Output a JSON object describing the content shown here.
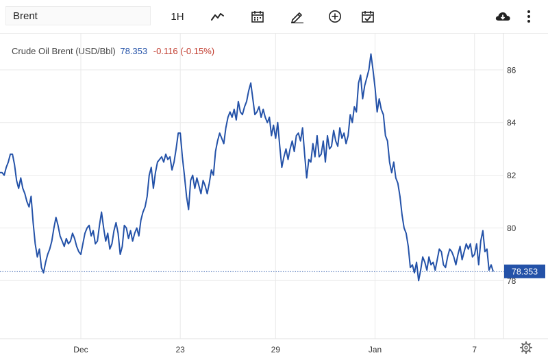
{
  "toolbar": {
    "search_value": "Brent",
    "interval_label": "1H",
    "icons": [
      "line-chart-icon",
      "calendar-icon",
      "pencil-icon",
      "plus-circle-icon",
      "calendar-check-icon",
      "cloud-download-icon",
      "more-vertical-icon"
    ]
  },
  "legend": {
    "symbol": "Crude Oil Brent (USD/Bbl)",
    "price": "78.353",
    "change": "-0.116 (-0.15%)"
  },
  "colors": {
    "line": "#2452a8",
    "negative": "#c0392b",
    "grid": "#e9e9e9"
  },
  "chart_data": {
    "type": "line",
    "title": "Crude Oil Brent (USD/Bbl)",
    "xlabel": "",
    "ylabel": "",
    "ylim": [
      75.8,
      87.4
    ],
    "yticks": [
      78,
      80,
      82,
      84,
      86
    ],
    "x_ticks": [
      {
        "label": "Dec",
        "index": 39
      },
      {
        "label": "23",
        "index": 87
      },
      {
        "label": "29",
        "index": 133
      },
      {
        "label": "Jan",
        "index": 181
      },
      {
        "label": "7",
        "index": 229
      }
    ],
    "current_price": 78.353,
    "current_price_label": "78.353",
    "series": [
      {
        "name": "Crude Oil Brent",
        "values": [
          82.1,
          82.1,
          82.0,
          82.3,
          82.5,
          82.8,
          82.8,
          82.4,
          81.8,
          81.5,
          81.9,
          81.5,
          81.3,
          81.0,
          80.8,
          81.2,
          80.2,
          79.4,
          78.9,
          79.2,
          78.5,
          78.3,
          78.7,
          79.0,
          79.2,
          79.5,
          80.0,
          80.4,
          80.1,
          79.7,
          79.5,
          79.3,
          79.6,
          79.4,
          79.5,
          79.8,
          79.6,
          79.3,
          79.1,
          79.0,
          79.4,
          79.8,
          80.0,
          80.1,
          79.7,
          79.9,
          79.4,
          79.5,
          80.1,
          80.6,
          80.0,
          79.5,
          79.8,
          79.2,
          79.4,
          79.9,
          80.2,
          79.8,
          79.0,
          79.3,
          80.1,
          80.0,
          79.6,
          79.9,
          79.5,
          79.8,
          80.0,
          79.7,
          80.3,
          80.6,
          80.8,
          81.2,
          82.0,
          82.3,
          81.5,
          82.1,
          82.5,
          82.6,
          82.7,
          82.5,
          82.8,
          82.6,
          82.7,
          82.2,
          82.5,
          83.0,
          83.6,
          83.6,
          82.7,
          82.0,
          81.2,
          80.7,
          81.8,
          82.0,
          81.5,
          81.9,
          81.6,
          81.3,
          81.8,
          81.6,
          81.3,
          81.7,
          82.2,
          82.0,
          82.9,
          83.3,
          83.6,
          83.4,
          83.2,
          83.8,
          84.2,
          84.4,
          84.2,
          84.5,
          84.1,
          84.8,
          84.4,
          84.3,
          84.6,
          84.8,
          85.2,
          85.5,
          84.9,
          84.3,
          84.4,
          84.6,
          84.2,
          84.5,
          84.2,
          84.0,
          84.2,
          83.5,
          83.9,
          83.4,
          84.0,
          83.1,
          82.3,
          82.7,
          83.0,
          82.6,
          83.0,
          83.3,
          82.9,
          83.5,
          83.6,
          83.3,
          83.8,
          82.8,
          81.9,
          82.6,
          82.5,
          83.2,
          82.7,
          83.5,
          82.7,
          82.8,
          83.3,
          82.5,
          83.5,
          83.0,
          83.1,
          83.7,
          83.3,
          83.1,
          83.8,
          83.4,
          83.6,
          83.2,
          83.5,
          84.3,
          84.0,
          84.6,
          84.4,
          85.5,
          85.8,
          84.9,
          85.4,
          85.7,
          86.0,
          86.6,
          86.0,
          85.3,
          84.4,
          84.9,
          84.5,
          84.3,
          83.5,
          83.3,
          82.5,
          82.1,
          82.5,
          81.9,
          81.7,
          81.2,
          80.5,
          80.0,
          79.8,
          79.3,
          78.5,
          78.6,
          78.3,
          78.7,
          78.0,
          78.4,
          78.9,
          78.7,
          78.4,
          78.9,
          78.6,
          78.7,
          78.4,
          78.8,
          79.2,
          79.1,
          78.6,
          78.5,
          78.9,
          79.2,
          79.1,
          78.9,
          78.6,
          79.0,
          79.3,
          78.8,
          79.1,
          79.4,
          79.2,
          79.4,
          78.9,
          79.0,
          79.4,
          78.6,
          79.5,
          79.9,
          79.1,
          79.2,
          78.4,
          78.6,
          78.35
        ]
      }
    ]
  }
}
